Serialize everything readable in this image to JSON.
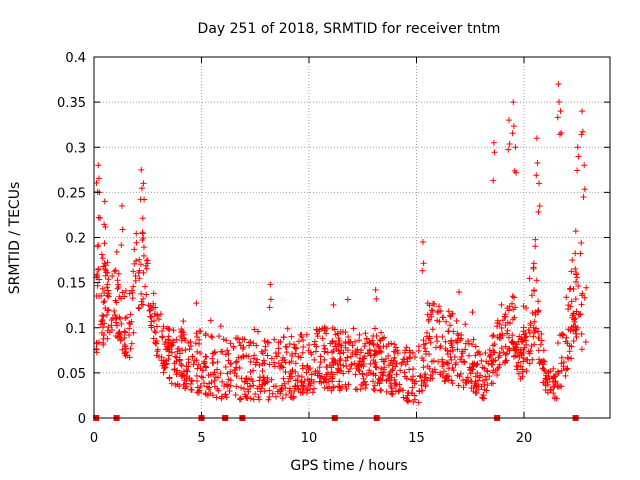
{
  "chart_data": {
    "type": "scatter",
    "title": "Day 251 of 2018, SRMTID for receiver tntm",
    "xlabel": "GPS time / hours",
    "ylabel": "SRMTID / TECUs",
    "xlim": [
      0,
      24
    ],
    "ylim": [
      0,
      0.4
    ],
    "x_ticks": [
      0,
      5,
      10,
      15,
      20
    ],
    "x_tick_labels": [
      "0",
      "5",
      "10",
      "15",
      "20"
    ],
    "y_ticks": [
      0,
      0.05,
      0.1,
      0.15,
      0.2,
      0.25,
      0.3,
      0.35,
      0.4
    ],
    "y_tick_labels": [
      "0",
      "0.05",
      "0.1",
      "0.15",
      "0.2",
      "0.25",
      "0.3",
      "0.35",
      "0.4"
    ],
    "grid": true,
    "marker": "+",
    "color": "#ff0000",
    "data_gaps_at_hours": [
      0.1,
      1.05,
      5.0,
      6.1,
      6.9,
      11.2,
      13.15,
      18.75,
      22.4
    ],
    "envelope": [
      {
        "x": 0.1,
        "lo": 0.07,
        "hi": 0.2
      },
      {
        "x": 0.4,
        "lo": 0.08,
        "hi": 0.18
      },
      {
        "x": 0.8,
        "lo": 0.09,
        "hi": 0.17
      },
      {
        "x": 1.2,
        "lo": 0.08,
        "hi": 0.16
      },
      {
        "x": 1.6,
        "lo": 0.06,
        "hi": 0.14
      },
      {
        "x": 2.1,
        "lo": 0.12,
        "hi": 0.23
      },
      {
        "x": 2.5,
        "lo": 0.12,
        "hi": 0.18
      },
      {
        "x": 2.9,
        "lo": 0.07,
        "hi": 0.12
      },
      {
        "x": 3.4,
        "lo": 0.04,
        "hi": 0.1
      },
      {
        "x": 4.5,
        "lo": 0.03,
        "hi": 0.1
      },
      {
        "x": 6.0,
        "lo": 0.02,
        "hi": 0.09
      },
      {
        "x": 7.5,
        "lo": 0.02,
        "hi": 0.09
      },
      {
        "x": 9.0,
        "lo": 0.02,
        "hi": 0.09
      },
      {
        "x": 10.5,
        "lo": 0.03,
        "hi": 0.1
      },
      {
        "x": 12.0,
        "lo": 0.03,
        "hi": 0.1
      },
      {
        "x": 13.5,
        "lo": 0.03,
        "hi": 0.09
      },
      {
        "x": 14.5,
        "lo": 0.02,
        "hi": 0.08
      },
      {
        "x": 15.0,
        "lo": 0.01,
        "hi": 0.07
      },
      {
        "x": 15.5,
        "lo": 0.04,
        "hi": 0.13
      },
      {
        "x": 16.5,
        "lo": 0.04,
        "hi": 0.12
      },
      {
        "x": 17.5,
        "lo": 0.03,
        "hi": 0.1
      },
      {
        "x": 18.2,
        "lo": 0.02,
        "hi": 0.06
      },
      {
        "x": 18.8,
        "lo": 0.05,
        "hi": 0.12
      },
      {
        "x": 19.4,
        "lo": 0.07,
        "hi": 0.15
      },
      {
        "x": 19.9,
        "lo": 0.04,
        "hi": 0.09
      },
      {
        "x": 20.5,
        "lo": 0.07,
        "hi": 0.2
      },
      {
        "x": 21.0,
        "lo": 0.03,
        "hi": 0.05
      },
      {
        "x": 21.5,
        "lo": 0.02,
        "hi": 0.06
      },
      {
        "x": 22.0,
        "lo": 0.05,
        "hi": 0.15
      },
      {
        "x": 22.5,
        "lo": 0.09,
        "hi": 0.22
      },
      {
        "x": 22.9,
        "lo": 0.06,
        "hi": 0.16
      }
    ],
    "spikes": [
      {
        "x": 0.2,
        "y": 0.28
      },
      {
        "x": 0.25,
        "y": 0.25
      },
      {
        "x": 0.5,
        "y": 0.24
      },
      {
        "x": 1.3,
        "y": 0.235
      },
      {
        "x": 2.2,
        "y": 0.275
      },
      {
        "x": 2.3,
        "y": 0.26
      },
      {
        "x": 18.6,
        "y": 0.305
      },
      {
        "x": 19.3,
        "y": 0.33
      },
      {
        "x": 19.5,
        "y": 0.35
      },
      {
        "x": 19.6,
        "y": 0.3
      },
      {
        "x": 20.6,
        "y": 0.31
      },
      {
        "x": 20.7,
        "y": 0.26
      },
      {
        "x": 21.6,
        "y": 0.37
      },
      {
        "x": 21.7,
        "y": 0.34
      },
      {
        "x": 22.5,
        "y": 0.3
      },
      {
        "x": 22.7,
        "y": 0.34
      },
      {
        "x": 22.8,
        "y": 0.28
      },
      {
        "x": 15.3,
        "y": 0.195
      },
      {
        "x": 8.2,
        "y": 0.148
      },
      {
        "x": 13.1,
        "y": 0.142
      }
    ]
  }
}
